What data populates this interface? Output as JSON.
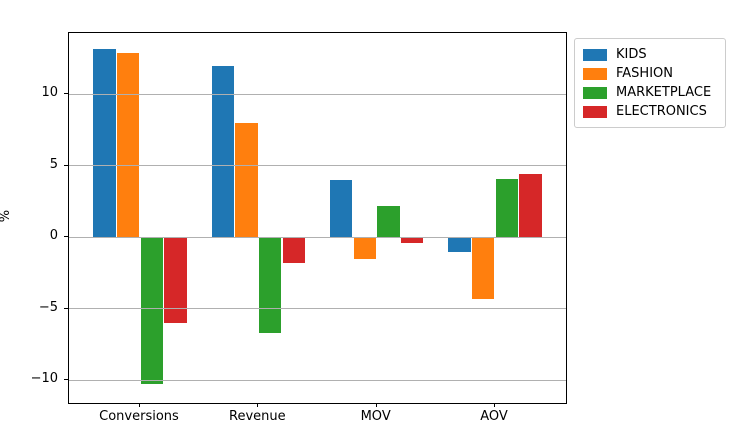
{
  "chart_data": {
    "type": "bar",
    "title": "",
    "xlabel": "",
    "ylabel": "%",
    "categories": [
      "Conversions",
      "Revenue",
      "MOV",
      "AOV"
    ],
    "series": [
      {
        "name": "KIDS",
        "color": "#1f77b4",
        "values": [
          13.2,
          12.0,
          4.0,
          -1.0
        ]
      },
      {
        "name": "FASHION",
        "color": "#ff7f0e",
        "values": [
          12.9,
          8.0,
          -1.5,
          -4.3
        ]
      },
      {
        "name": "MARKETPLACE",
        "color": "#2ca02c",
        "values": [
          -10.3,
          -6.7,
          2.2,
          4.1
        ]
      },
      {
        "name": "ELECTRONICS",
        "color": "#d62728",
        "values": [
          -6.0,
          -1.8,
          -0.4,
          4.4
        ]
      }
    ],
    "yticks": [
      -10,
      -5,
      0,
      5,
      10
    ],
    "ylim": [
      -11.6,
      14.3
    ],
    "xlim": [
      -0.6,
      3.6
    ],
    "bar_offsets": [
      -0.3,
      -0.1,
      0.1,
      0.3
    ],
    "bar_width": 0.19,
    "grid": "horizontal",
    "legend": {
      "position": "outside-top-right"
    },
    "colors": {
      "grid": "#b0b0b0",
      "spine": "#000000",
      "background": "#ffffff"
    }
  }
}
